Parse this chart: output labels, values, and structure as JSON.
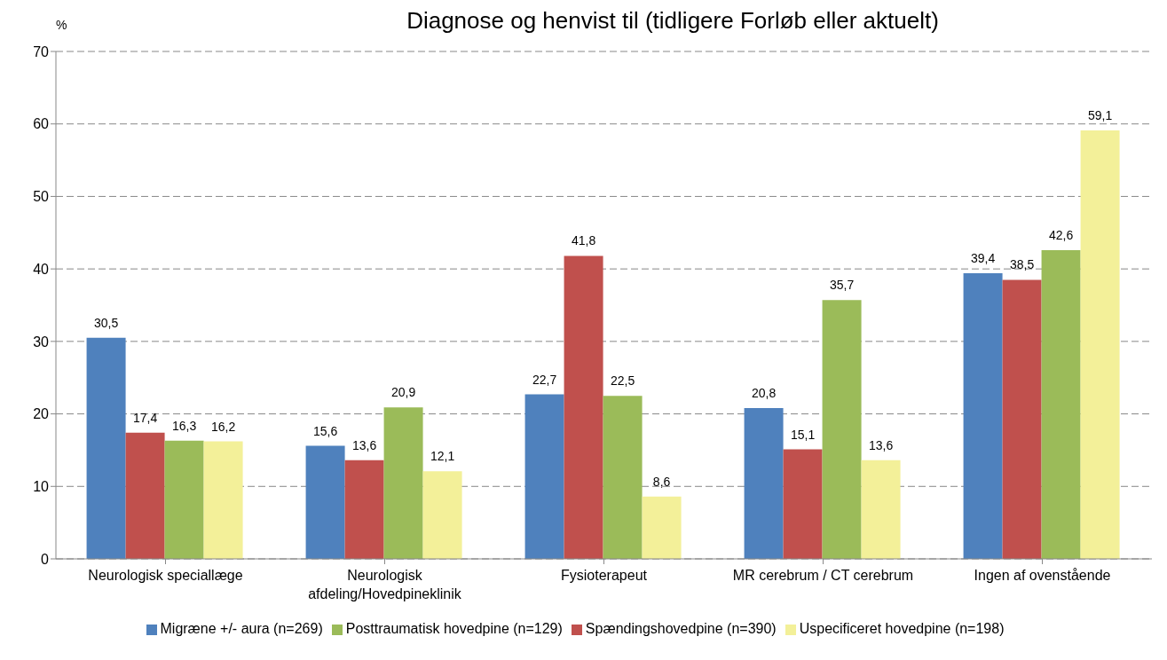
{
  "chart_data": {
    "type": "bar",
    "title": "Diagnose og henvist til (tidligere Forløb eller aktuelt)",
    "ylabel": "%",
    "categories": [
      "Neurologisk speciallæge",
      "Neurologisk afdeling/Hovedpineklinik",
      "Fysioterapeut",
      "MR cerebrum / CT cerebrum",
      "Ingen af ovenstående"
    ],
    "series": [
      {
        "name": "Migræne +/- aura (n=269)",
        "color": "#4f81bd",
        "values": [
          30.5,
          15.6,
          22.7,
          20.8,
          39.4
        ],
        "value_labels": [
          "30,5",
          "15,6",
          "22,7",
          "20,8",
          "39,4"
        ]
      },
      {
        "name": "Spændingshovedpine (n=390)",
        "color": "#c0504d",
        "values": [
          17.4,
          13.6,
          41.8,
          15.1,
          38.5
        ],
        "value_labels": [
          "17,4",
          "13,6",
          "41,8",
          "15,1",
          "38,5"
        ]
      },
      {
        "name": "Posttraumatisk hovedpine (n=129)",
        "color": "#9bbb59",
        "values": [
          16.3,
          20.9,
          22.5,
          35.7,
          42.6
        ],
        "value_labels": [
          "16,3",
          "20,9",
          "22,5",
          "35,7",
          "42,6"
        ]
      },
      {
        "name": "Uspecificeret hovedpine (n=198)",
        "color": "#f3f099",
        "values": [
          16.2,
          12.1,
          8.6,
          13.6,
          59.1
        ],
        "value_labels": [
          "16,2",
          "12,1",
          "8,6",
          "13,6",
          "59,1"
        ]
      }
    ],
    "ylim": [
      0,
      70
    ],
    "yticks": [
      0,
      10,
      20,
      30,
      40,
      50,
      60,
      70
    ],
    "grid": "y",
    "legend": "bottom"
  }
}
